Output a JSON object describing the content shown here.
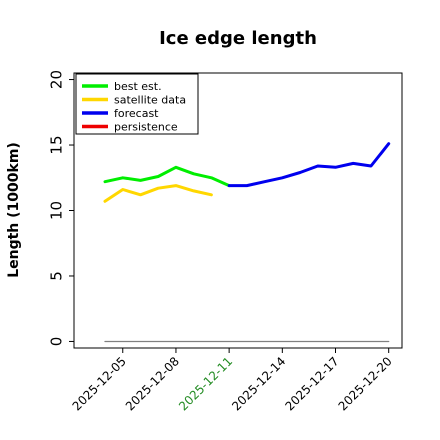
{
  "chart_data": {
    "type": "line",
    "title": "Ice edge length",
    "xlabel": "",
    "ylabel": "Length (1000km)",
    "ylim": [
      -0.5,
      20.5
    ],
    "xlim": [
      "2025-12-02T06:00",
      "2025-12-20T18:00"
    ],
    "yticks": [
      "0",
      "5",
      "10",
      "15",
      "20"
    ],
    "xticks": [
      {
        "label": "2025-12-05",
        "date": "2025-12-05",
        "color": "#000000"
      },
      {
        "label": "2025-12-08",
        "date": "2025-12-08",
        "color": "#000000"
      },
      {
        "label": "2025-12-11",
        "date": "2025-12-11",
        "color": "#228B22"
      },
      {
        "label": "2025-12-14",
        "date": "2025-12-14",
        "color": "#000000"
      },
      {
        "label": "2025-12-17",
        "date": "2025-12-17",
        "color": "#000000"
      },
      {
        "label": "2025-12-20",
        "date": "2025-12-20",
        "color": "#000000"
      }
    ],
    "legend_placement": "top-left",
    "grid": false,
    "series": [
      {
        "name": "best est.",
        "color": "#00ee00",
        "x": [
          "2025-12-04",
          "2025-12-05",
          "2025-12-06",
          "2025-12-07",
          "2025-12-08",
          "2025-12-09",
          "2025-12-10",
          "2025-12-11"
        ],
        "values": [
          12.2,
          12.5,
          12.3,
          12.6,
          13.3,
          12.8,
          12.5,
          11.9
        ]
      },
      {
        "name": "satellite data",
        "color": "#ffd700",
        "x": [
          "2025-12-04",
          "2025-12-05",
          "2025-12-06",
          "2025-12-07",
          "2025-12-08",
          "2025-12-09",
          "2025-12-10"
        ],
        "values": [
          10.7,
          11.6,
          11.2,
          11.7,
          11.9,
          11.5,
          11.2
        ]
      },
      {
        "name": "forecast",
        "color": "#0000ee",
        "x": [
          "2025-12-11",
          "2025-12-12",
          "2025-12-13",
          "2025-12-14",
          "2025-12-15",
          "2025-12-16",
          "2025-12-17",
          "2025-12-18",
          "2025-12-19",
          "2025-12-20"
        ],
        "values": [
          11.9,
          11.9,
          12.2,
          12.5,
          12.9,
          13.4,
          13.3,
          13.6,
          13.4,
          15.1
        ]
      },
      {
        "name": "persistence",
        "color": "#ee0000",
        "x": [],
        "values": []
      },
      {
        "name": "",
        "color": "#808080",
        "x": [
          "2025-12-04",
          "2025-12-20"
        ],
        "values": [
          0,
          0
        ]
      }
    ]
  }
}
